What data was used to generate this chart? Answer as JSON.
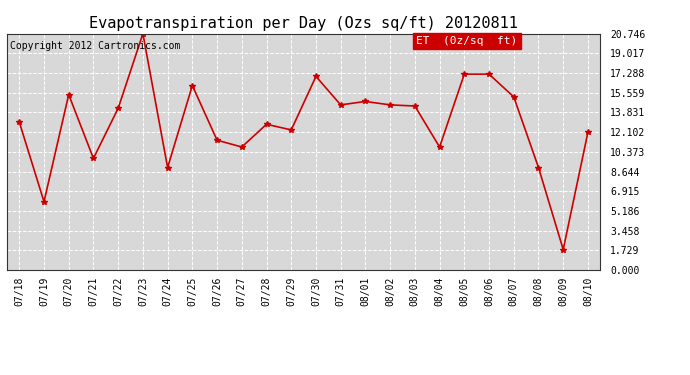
{
  "title": "Evapotranspiration per Day (Ozs sq/ft) 20120811",
  "copyright": "Copyright 2012 Cartronics.com",
  "legend_label": "ET  (0z/sq  ft)",
  "x_labels": [
    "07/18",
    "07/19",
    "07/20",
    "07/21",
    "07/22",
    "07/23",
    "07/24",
    "07/25",
    "07/26",
    "07/27",
    "07/28",
    "07/29",
    "07/30",
    "07/31",
    "08/01",
    "08/02",
    "08/03",
    "08/04",
    "08/05",
    "08/06",
    "08/07",
    "08/08",
    "08/09",
    "08/10"
  ],
  "y_values": [
    13.0,
    6.0,
    15.4,
    9.8,
    14.2,
    20.746,
    9.0,
    16.2,
    11.4,
    10.8,
    12.8,
    12.3,
    17.0,
    14.5,
    14.8,
    14.5,
    14.4,
    10.8,
    17.2,
    17.2,
    15.2,
    9.0,
    1.8,
    12.1
  ],
  "y_ticks": [
    0.0,
    1.729,
    3.458,
    5.186,
    6.915,
    8.644,
    10.373,
    12.102,
    13.831,
    15.559,
    17.288,
    19.017,
    20.746
  ],
  "y_min": 0.0,
  "y_max": 20.746,
  "line_color": "#cc0000",
  "marker": "*",
  "marker_color": "#cc0000",
  "marker_size": 4,
  "bg_color": "#ffffff",
  "plot_bg_color": "#d8d8d8",
  "grid_color": "#ffffff",
  "legend_bg": "#cc0000",
  "legend_text_color": "#ffffff",
  "title_fontsize": 11,
  "copyright_fontsize": 7,
  "tick_fontsize": 7,
  "legend_fontsize": 8
}
